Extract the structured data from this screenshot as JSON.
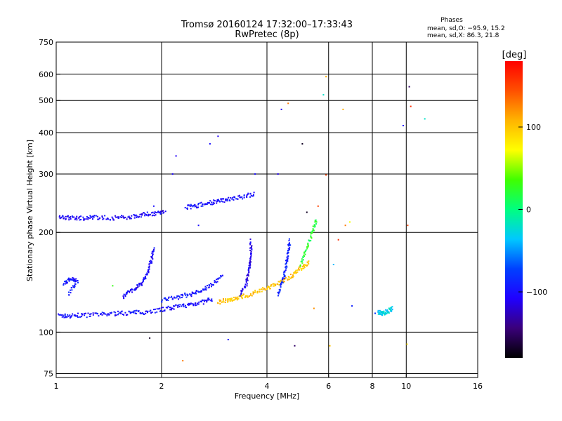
{
  "chart_data": {
    "type": "scatter",
    "title": "Tromsø 20160124 17:32:00–17:33:43",
    "subtitle": "RwPretec (8p)",
    "xlabel": "Frequency [MHz]",
    "ylabel": "Stationary phase Virtual Height [km]",
    "x_scale": "log",
    "y_scale": "log",
    "xlim": [
      1,
      16
    ],
    "ylim": [
      73,
      750
    ],
    "x_ticks": [
      1,
      2,
      4,
      6,
      8,
      10,
      16
    ],
    "x_tick_labels": [
      "1",
      "2",
      "4",
      "6",
      "8",
      "10",
      "16"
    ],
    "y_ticks": [
      75,
      100,
      200,
      300,
      400,
      500,
      600,
      750
    ],
    "y_tick_labels": [
      "75",
      "100",
      "200",
      "300",
      "400",
      "500",
      "600",
      "750"
    ],
    "grid": true,
    "stats": {
      "heading": "Phases",
      "line_o": "mean, sd,O: −95.9, 15.2",
      "line_x": "mean, sd,X:  86.3, 21.8"
    },
    "colorbar": {
      "label": "[deg]",
      "range": [
        -180,
        180
      ],
      "ticks": [
        100,
        0,
        -100
      ],
      "tick_labels": [
        "100",
        "0",
        "−100"
      ],
      "colormap": [
        "#000000",
        "#3a007a",
        "#2000ff",
        "#0040ff",
        "#00c8ff",
        "#00ff80",
        "#40ff00",
        "#ffff00",
        "#ffb400",
        "#ff5000",
        "#ff0000"
      ]
    },
    "series": [
      {
        "traces": [
          {
            "points": [
              [
                1.02,
                112
              ],
              [
                1.1,
                112
              ],
              [
                1.2,
                112.5
              ],
              [
                1.35,
                113
              ],
              [
                1.5,
                114
              ],
              [
                1.65,
                114.5
              ],
              [
                1.8,
                115
              ],
              [
                2.0,
                117
              ],
              [
                2.2,
                119
              ],
              [
                2.4,
                121
              ],
              [
                2.6,
                123
              ],
              [
                2.8,
                126
              ]
            ],
            "phase": -100
          },
          {
            "points": [
              [
                1.02,
                222
              ],
              [
                1.1,
                221
              ],
              [
                1.2,
                221
              ],
              [
                1.3,
                222
              ],
              [
                1.45,
                221
              ],
              [
                1.6,
                222
              ],
              [
                1.75,
                226
              ],
              [
                1.9,
                228
              ],
              [
                2.05,
                231
              ]
            ],
            "phase": -105
          },
          {
            "points": [
              [
                2.35,
                238
              ],
              [
                2.5,
                240
              ],
              [
                2.7,
                245
              ],
              [
                2.9,
                248
              ],
              [
                3.1,
                252
              ],
              [
                3.4,
                256
              ],
              [
                3.7,
                262
              ]
            ],
            "phase": -100
          },
          {
            "points": [
              [
                2.9,
                123
              ],
              [
                3.1,
                125
              ],
              [
                3.3,
                127
              ],
              [
                3.5,
                129
              ],
              [
                3.8,
                133
              ],
              [
                4.1,
                137
              ],
              [
                4.4,
                142
              ],
              [
                4.7,
                148
              ],
              [
                5.0,
                156
              ],
              [
                5.3,
                162
              ]
            ],
            "phase": 100
          },
          {
            "points": [
              [
                3.35,
                130
              ],
              [
                3.5,
                140
              ],
              [
                3.55,
                155
              ],
              [
                3.6,
                170
              ],
              [
                3.6,
                190
              ]
            ],
            "phase": -110
          },
          {
            "points": [
              [
                1.55,
                128
              ],
              [
                1.65,
                134
              ],
              [
                1.75,
                140
              ],
              [
                1.82,
                150
              ],
              [
                1.87,
                165
              ],
              [
                1.9,
                178
              ]
            ],
            "phase": -105
          },
          {
            "points": [
              [
                2.0,
                125
              ],
              [
                2.2,
                127
              ],
              [
                2.4,
                130
              ],
              [
                2.6,
                133
              ],
              [
                2.8,
                140
              ],
              [
                3.0,
                148
              ]
            ],
            "phase": -95
          },
          {
            "points": [
              [
                4.3,
                130
              ],
              [
                4.45,
                145
              ],
              [
                4.55,
                160
              ],
              [
                4.6,
                175
              ],
              [
                4.65,
                190
              ]
            ],
            "phase": -90
          },
          {
            "points": [
              [
                5.0,
                160
              ],
              [
                5.2,
                180
              ],
              [
                5.4,
                200
              ],
              [
                5.55,
                220
              ]
            ],
            "phase": 20
          },
          {
            "points": [
              [
                1.05,
                140
              ],
              [
                1.1,
                145
              ],
              [
                1.15,
                143
              ],
              [
                1.08,
                130
              ]
            ],
            "phase": -95
          },
          {
            "points": [
              [
                8.3,
                115
              ],
              [
                8.6,
                114
              ],
              [
                8.9,
                116
              ],
              [
                9.1,
                118
              ]
            ],
            "phase": -30
          }
        ]
      },
      {
        "points": [
          [
            1.45,
            138,
            30
          ],
          [
            2.3,
            82,
            130
          ],
          [
            1.85,
            96,
            -170
          ],
          [
            3.1,
            95,
            -100
          ],
          [
            4.8,
            91,
            -150
          ],
          [
            6.05,
            91,
            100
          ],
          [
            5.05,
            370,
            -170
          ],
          [
            5.8,
            520,
            -20
          ],
          [
            5.9,
            590,
            110
          ],
          [
            6.6,
            470,
            110
          ],
          [
            9.8,
            420,
            -100
          ],
          [
            10.2,
            550,
            -150
          ],
          [
            10.3,
            480,
            160
          ],
          [
            11.3,
            440,
            -20
          ],
          [
            4.3,
            300,
            -110
          ],
          [
            4.4,
            470,
            -110
          ],
          [
            4.6,
            490,
            130
          ],
          [
            2.15,
            300,
            -105
          ],
          [
            2.2,
            340,
            -110
          ],
          [
            2.75,
            370,
            -100
          ],
          [
            2.9,
            390,
            -110
          ],
          [
            5.2,
            230,
            -170
          ],
          [
            5.6,
            240,
            150
          ],
          [
            5.9,
            298,
            150
          ],
          [
            6.7,
            210,
            130
          ],
          [
            6.9,
            215,
            70
          ],
          [
            6.4,
            190,
            160
          ],
          [
            10.1,
            210,
            150
          ],
          [
            10.05,
            92,
            90
          ],
          [
            6.2,
            160,
            -40
          ],
          [
            7.0,
            120,
            -90
          ],
          [
            8.15,
            114,
            -80
          ],
          [
            5.45,
            118,
            120
          ],
          [
            2.55,
            210,
            -100
          ],
          [
            3.7,
            300,
            -100
          ],
          [
            1.9,
            240,
            -100
          ]
        ]
      }
    ]
  }
}
